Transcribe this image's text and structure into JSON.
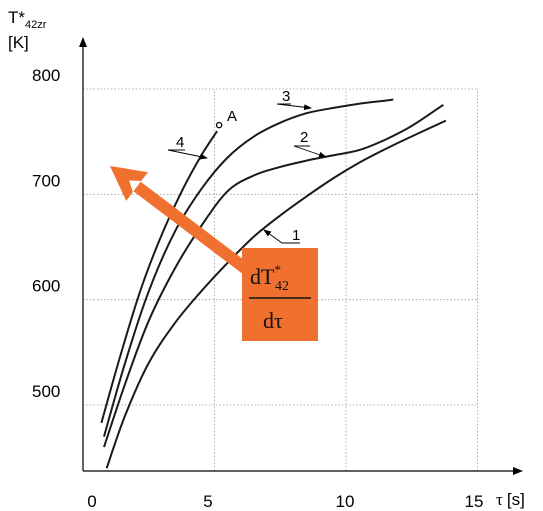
{
  "chart_data": {
    "type": "line",
    "ylabel_main": "T*",
    "ylabel_sub": "42zr",
    "ylabel_unit": "[K]",
    "xlabel_symbol": "τ",
    "xlabel_unit": "[s]",
    "xlim": [
      0,
      15
    ],
    "ylim": [
      450,
      850
    ],
    "xticks": [
      {
        "value": 0,
        "label": "0"
      },
      {
        "value": 5,
        "label": "5"
      },
      {
        "value": 10,
        "label": "10"
      },
      {
        "value": 15,
        "label": "15"
      }
    ],
    "yticks": [
      {
        "value": 500,
        "label": "500"
      },
      {
        "value": 600,
        "label": "600"
      },
      {
        "value": 700,
        "label": "700"
      },
      {
        "value": 800,
        "label": "800"
      }
    ],
    "grid": true,
    "series": [
      {
        "name": "1",
        "x": [
          0.9,
          1.6,
          2.5,
          3.5,
          4.5,
          5.5,
          6.5,
          7.5,
          8.5,
          9.5,
          10.5,
          11.5,
          12.5,
          13.8
        ],
        "y": [
          440,
          490,
          540,
          578,
          608,
          635,
          660,
          680,
          698,
          715,
          730,
          743,
          755,
          770
        ]
      },
      {
        "name": "2",
        "x": [
          0.8,
          1.6,
          2.5,
          3.5,
          4.5,
          5.5,
          6.5,
          7.5,
          8.5,
          9.5,
          10.5,
          11.5,
          12.5,
          13.7
        ],
        "y": [
          460,
          520,
          580,
          630,
          670,
          703,
          718,
          726,
          732,
          737,
          742,
          752,
          765,
          785
        ]
      },
      {
        "name": "3",
        "x": [
          0.8,
          1.6,
          2.5,
          3.5,
          4.5,
          5.5,
          6.5,
          7.5,
          8.5,
          9.5,
          10.5,
          11.5,
          11.8
        ],
        "y": [
          470,
          540,
          608,
          665,
          705,
          735,
          755,
          768,
          777,
          782,
          786,
          789,
          790
        ]
      },
      {
        "name": "4",
        "x": [
          0.7,
          1.4,
          2.2,
          3.0,
          3.8,
          4.5,
          5.1
        ],
        "y": [
          483,
          545,
          610,
          662,
          705,
          737,
          760
        ]
      }
    ],
    "point_label": {
      "text": "A",
      "x": 5.4,
      "y": 766
    },
    "annotation": {
      "numerator": "dT",
      "numerator_sup": "*",
      "numerator_sub": "42",
      "denominator": "dτ",
      "box_color": "#F07030",
      "arrow_color": "#F07030"
    },
    "colors": {
      "curve": "#1a1a1a",
      "grid": "#999999",
      "axis": "#000000"
    }
  }
}
